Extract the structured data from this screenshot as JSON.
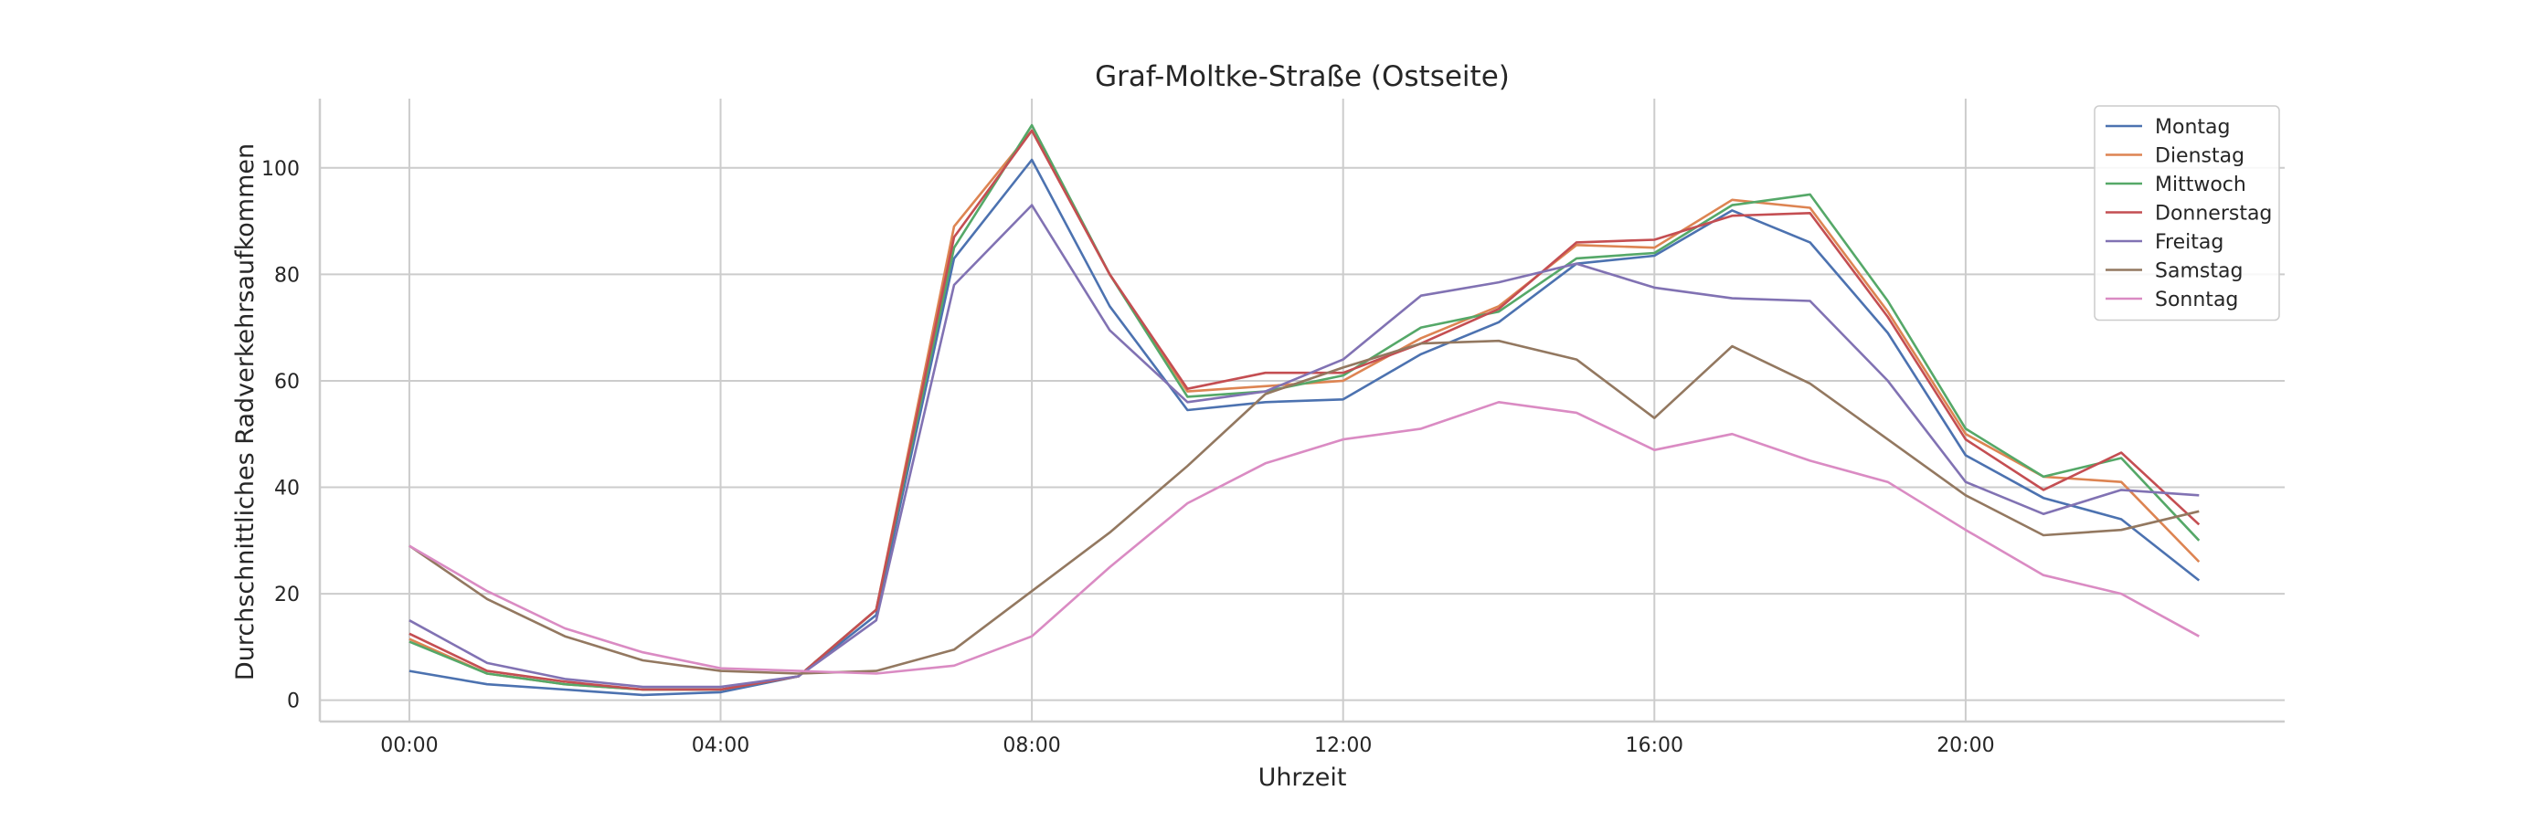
{
  "chart_data": {
    "type": "line",
    "title": "Graf-Moltke-Straße (Ostseite)",
    "xlabel": "Uhrzeit",
    "ylabel": "Durchschnittliches Radverkehrsaufkommen",
    "x": [
      0,
      1,
      2,
      3,
      4,
      5,
      6,
      7,
      8,
      9,
      10,
      11,
      12,
      13,
      14,
      15,
      16,
      17,
      18,
      19,
      20,
      21,
      22,
      23
    ],
    "x_ticks": [
      {
        "value": 0,
        "label": "00:00"
      },
      {
        "value": 4,
        "label": "04:00"
      },
      {
        "value": 8,
        "label": "08:00"
      },
      {
        "value": 12,
        "label": "12:00"
      },
      {
        "value": 16,
        "label": "16:00"
      },
      {
        "value": 20,
        "label": "20:00"
      }
    ],
    "y_ticks": [
      0,
      20,
      40,
      60,
      80,
      100
    ],
    "xlim": [
      -1.15,
      24.1
    ],
    "ylim": [
      -4,
      113
    ],
    "grid": true,
    "legend_position": "top-right",
    "series": [
      {
        "name": "Montag",
        "color": "#4c72b0",
        "values": [
          5.5,
          3,
          2,
          1,
          1.5,
          4.5,
          16,
          83,
          101.5,
          74,
          54.5,
          56,
          56.5,
          65,
          71,
          82,
          83.5,
          92,
          86,
          69,
          46,
          38,
          34,
          22.5
        ]
      },
      {
        "name": "Dienstag",
        "color": "#dd8452",
        "values": [
          11.5,
          5,
          3,
          2,
          2,
          4.5,
          17,
          89,
          107,
          80,
          58,
          59,
          60,
          68,
          74,
          85.5,
          85,
          94,
          92.5,
          73,
          50,
          42,
          41,
          26
        ]
      },
      {
        "name": "Mittwoch",
        "color": "#55a868",
        "values": [
          11,
          5,
          3,
          2,
          2,
          4.5,
          17,
          85,
          108,
          80,
          57,
          58,
          61,
          70,
          73,
          83,
          84,
          93,
          95,
          75,
          51,
          42,
          45.5,
          30
        ]
      },
      {
        "name": "Donnerstag",
        "color": "#c44e52",
        "values": [
          12.5,
          5.5,
          3.5,
          2,
          2,
          4.5,
          17,
          87,
          107,
          80,
          58.5,
          61.5,
          61.5,
          67,
          73.5,
          86,
          86.5,
          91,
          91.5,
          72,
          49,
          39.5,
          46.5,
          33
        ]
      },
      {
        "name": "Freitag",
        "color": "#8172b3",
        "values": [
          15,
          7,
          4,
          2.5,
          2.5,
          4.5,
          15,
          78,
          93,
          69.5,
          56,
          58,
          64,
          76,
          78.5,
          82,
          77.5,
          75.5,
          75,
          60,
          41,
          35,
          39.5,
          38.5
        ]
      },
      {
        "name": "Samstag",
        "color": "#937860",
        "values": [
          29,
          19,
          12,
          7.5,
          5.5,
          5,
          5.5,
          9.5,
          20.5,
          31.5,
          44,
          57.5,
          62.5,
          67,
          67.5,
          64,
          53,
          66.5,
          59.5,
          49,
          38.5,
          31,
          32,
          35.5
        ]
      },
      {
        "name": "Sonntag",
        "color": "#da8bc3",
        "values": [
          29,
          20.5,
          13.5,
          9,
          6,
          5.5,
          5,
          6.5,
          12,
          25,
          37,
          44.5,
          49,
          51,
          56,
          54,
          47,
          50,
          45,
          41,
          32,
          23.5,
          20,
          12
        ]
      }
    ]
  }
}
